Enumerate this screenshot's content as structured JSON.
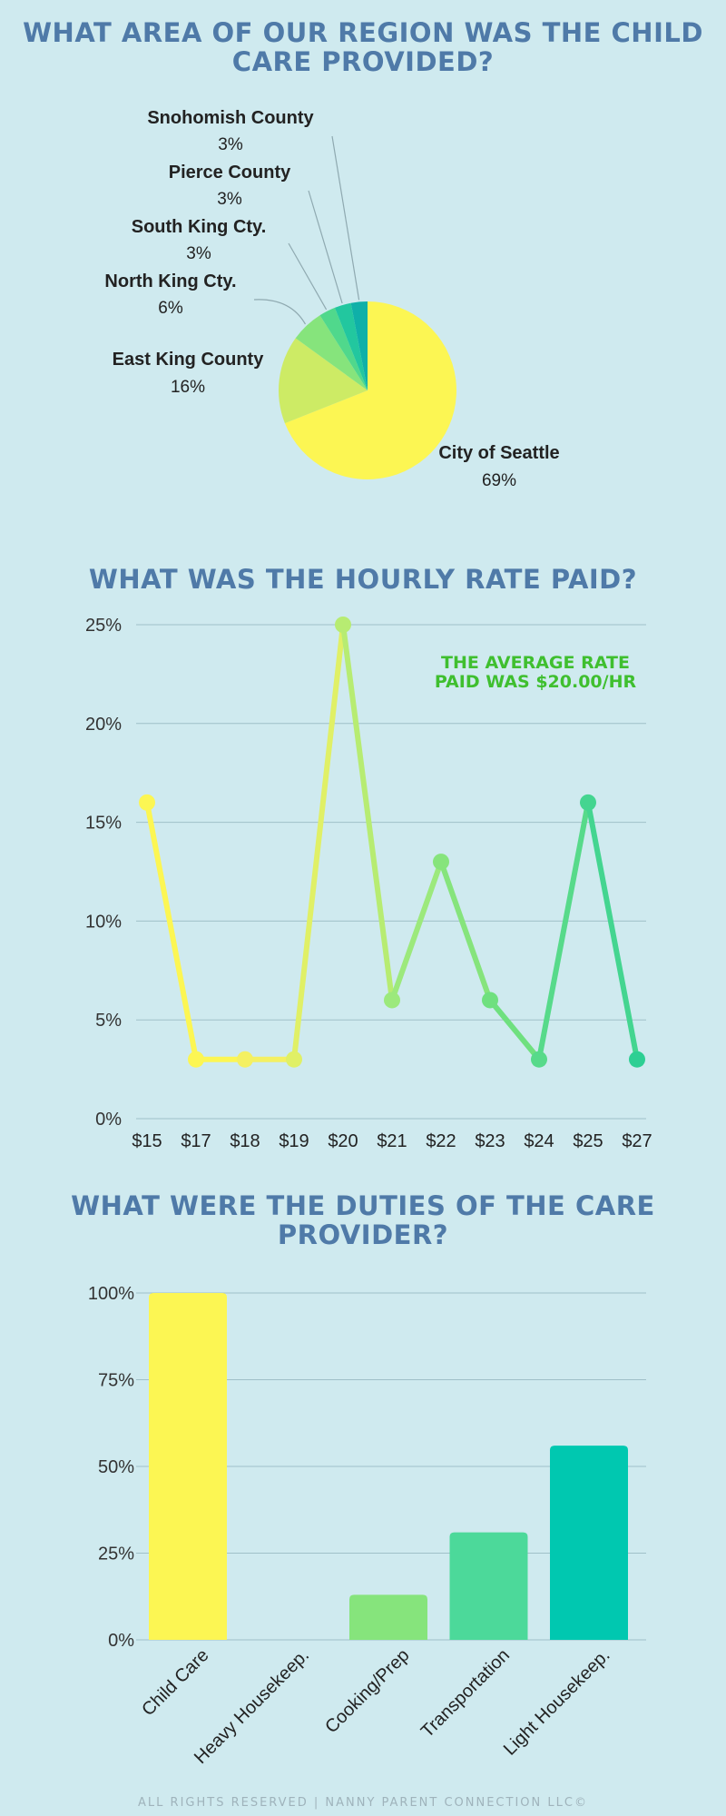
{
  "footer": "ALL RIGHTS RESERVED | NANNY PARENT CONNECTION LLC©",
  "colors": {
    "title": "#4f7aa8",
    "background": "#cfeaef",
    "grid": "#9fc0c8",
    "pie": [
      "#fcf653",
      "#cdeb65",
      "#86e47c",
      "#50d88c",
      "#22c79f",
      "#0fb0a8"
    ],
    "line": [
      "#fcf653",
      "#fcf653",
      "#f4f062",
      "#e0f066",
      "#b7ec72",
      "#9ce97c",
      "#86e47c",
      "#6fe07f",
      "#57da8a",
      "#44d590",
      "#2dcf93"
    ],
    "bars": [
      "#fcf653",
      "#cdeb65",
      "#86e47c",
      "#4cd99a",
      "#00c8b0"
    ]
  },
  "chart_data": [
    {
      "type": "pie",
      "title": "WHAT AREA OF OUR REGION WAS THE CHILD CARE PROVIDED?",
      "slices": [
        {
          "label": "City of Seattle",
          "value_label": "69%",
          "value": 69
        },
        {
          "label": "East King County",
          "value_label": "16%",
          "value": 16
        },
        {
          "label": "North King Cty.",
          "value_label": "6%",
          "value": 6
        },
        {
          "label": "South King Cty.",
          "value_label": "3%",
          "value": 3
        },
        {
          "label": "Pierce County",
          "value_label": "3%",
          "value": 3
        },
        {
          "label": "Snohomish County",
          "value_label": "3%",
          "value": 3
        }
      ]
    },
    {
      "type": "line",
      "title": "WHAT WAS THE HOURLY RATE PAID?",
      "annotation": [
        "THE AVERAGE RATE",
        "PAID WAS $20.00/HR"
      ],
      "categories": [
        "$15",
        "$17",
        "$18",
        "$19",
        "$20",
        "$21",
        "$22",
        "$23",
        "$24",
        "$25",
        "$27"
      ],
      "values": [
        16,
        3,
        3,
        3,
        25,
        6,
        13,
        6,
        3,
        16,
        3
      ],
      "y_ticks": [
        "0%",
        "5%",
        "10%",
        "15%",
        "20%",
        "25%"
      ],
      "ylim": [
        0,
        25
      ],
      "grid": true
    },
    {
      "type": "bar",
      "title": "WHAT WERE THE DUTIES OF THE CARE PROVIDER?",
      "categories": [
        "Child Care",
        "Heavy Housekeep.",
        "Cooking/Prep",
        "Transportation",
        "Light Housekeep."
      ],
      "values": [
        100,
        0,
        13,
        31,
        56
      ],
      "y_ticks": [
        "0%",
        "25%",
        "50%",
        "75%",
        "100%"
      ],
      "ylim": [
        0,
        100
      ],
      "grid": true
    }
  ]
}
